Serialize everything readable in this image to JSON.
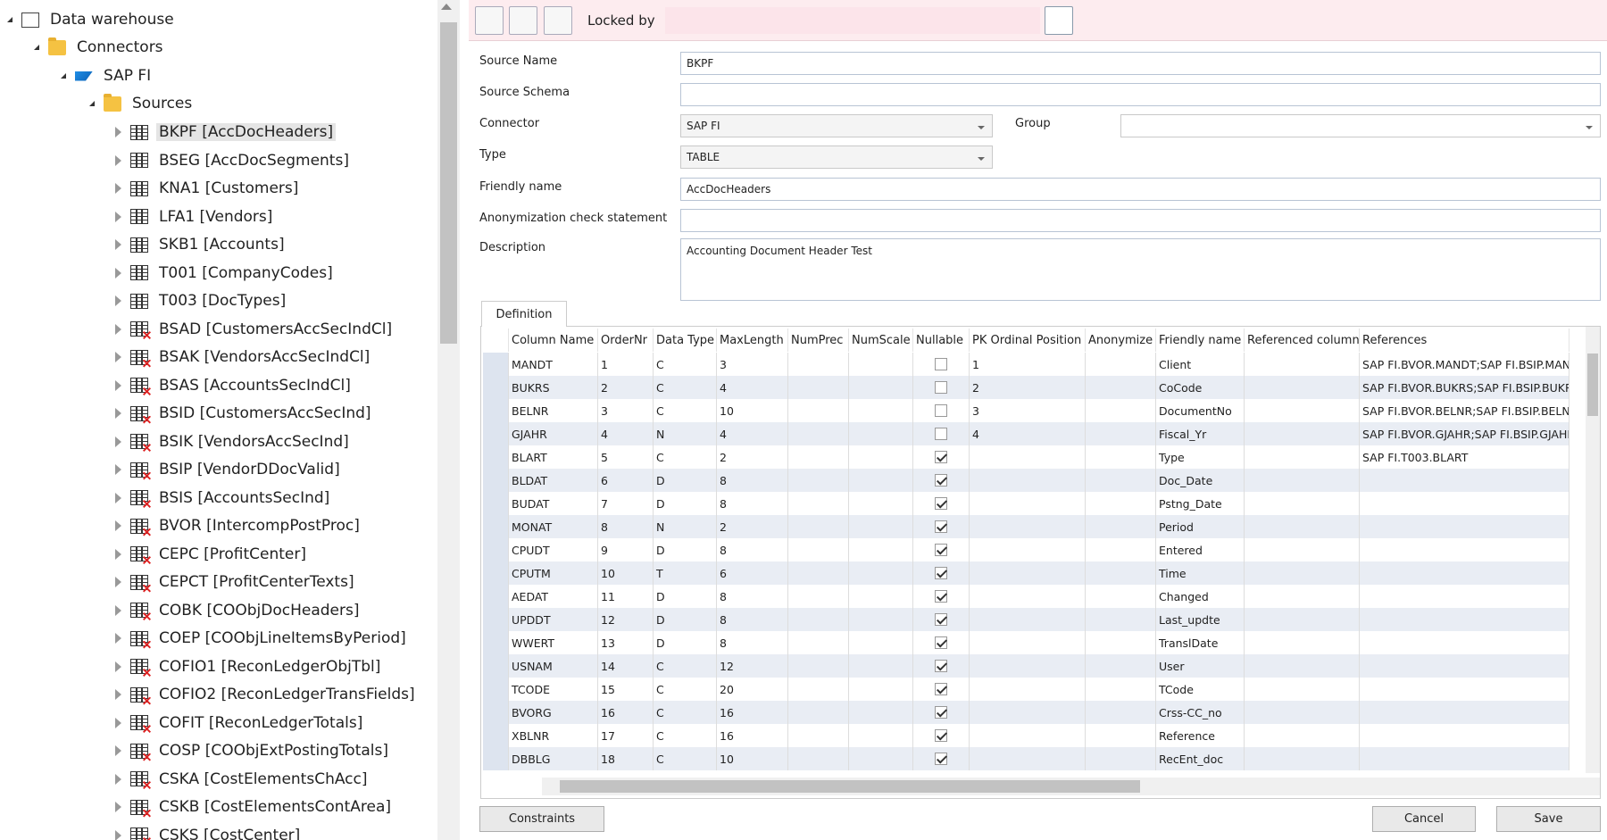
{
  "tree": {
    "root": "Data warehouse",
    "connectors": "Connectors",
    "connector": "SAP FI",
    "sources": "Sources",
    "items": [
      {
        "label": "BKPF [AccDocHeaders]",
        "kind": "table"
      },
      {
        "label": "BSEG [AccDocSegments]",
        "kind": "table"
      },
      {
        "label": "KNA1 [Customers]",
        "kind": "table"
      },
      {
        "label": "LFA1 [Vendors]",
        "kind": "table"
      },
      {
        "label": "SKB1 [Accounts]",
        "kind": "table"
      },
      {
        "label": "T001 [CompanyCodes]",
        "kind": "table"
      },
      {
        "label": "T003 [DocTypes]",
        "kind": "table"
      },
      {
        "label": "BSAD [CustomersAccSecIndCl]",
        "kind": "unloaded"
      },
      {
        "label": "BSAK [VendorsAccSecIndCl]",
        "kind": "unloaded"
      },
      {
        "label": "BSAS [AccountsSecIndCl]",
        "kind": "unloaded"
      },
      {
        "label": "BSID [CustomersAccSecInd]",
        "kind": "unloaded"
      },
      {
        "label": "BSIK [VendorsAccSecInd]",
        "kind": "unloaded"
      },
      {
        "label": "BSIP [VendorDDocValid]",
        "kind": "unloaded"
      },
      {
        "label": "BSIS [AccountsSecInd]",
        "kind": "unloaded"
      },
      {
        "label": "BVOR [IntercompPostProc]",
        "kind": "unloaded"
      },
      {
        "label": "CEPC [ProfitCenter]",
        "kind": "unloaded"
      },
      {
        "label": "CEPCT [ProfitCenterTexts]",
        "kind": "unloaded"
      },
      {
        "label": "COBK [COObjDocHeaders]",
        "kind": "unloaded"
      },
      {
        "label": "COEP [COObjLineItemsByPeriod]",
        "kind": "unloaded"
      },
      {
        "label": "COFIO1 [ReconLedgerObjTbl]",
        "kind": "unloaded"
      },
      {
        "label": "COFIO2 [ReconLedgerTransFields]",
        "kind": "unloaded"
      },
      {
        "label": "COFIT [ReconLedgerTotals]",
        "kind": "unloaded"
      },
      {
        "label": "COSP [COObjExtPostingTotals]",
        "kind": "unloaded"
      },
      {
        "label": "CSKA [CostElementsChAcc]",
        "kind": "unloaded"
      },
      {
        "label": "CSKB [CostElementsContArea]",
        "kind": "unloaded"
      },
      {
        "label": "CSKS [CostCenter]",
        "kind": "unloaded"
      }
    ]
  },
  "toolbar": {
    "locked_by": "Locked by"
  },
  "form": {
    "fields": [
      {
        "label": "Source Name",
        "value": "BKPF",
        "control": "text"
      },
      {
        "label": "Source Schema",
        "value": null,
        "control": "text"
      },
      {
        "label": "Connector",
        "value": "SAP FI",
        "control": "select"
      },
      {
        "label": "Type",
        "value": "TABLE",
        "control": "select"
      },
      {
        "label": "Friendly name",
        "value": "AccDocHeaders",
        "control": "text"
      },
      {
        "label": "Anonymization check statement",
        "value": null,
        "control": "text"
      },
      {
        "label": "Description",
        "value": "Accounting Document Header Test",
        "control": "textarea"
      }
    ],
    "group": {
      "label": "Group",
      "value": null
    }
  },
  "tab": "Definition",
  "table": {
    "columns": [
      "Column Name",
      "OrderNr",
      "Data Type",
      "MaxLength",
      "NumPrec",
      "NumScale",
      "Nullable",
      "PK Ordinal Position",
      "Anonymize",
      "Friendly name",
      "Referenced column",
      "References"
    ],
    "rows": [
      [
        "MANDT",
        1,
        "C",
        3,
        null,
        null,
        false,
        1,
        null,
        "Client",
        null,
        "SAP FI.BVOR.MANDT;SAP FI.BSIP.MAND"
      ],
      [
        "BUKRS",
        2,
        "C",
        4,
        null,
        null,
        false,
        2,
        null,
        "CoCode",
        null,
        "SAP FI.BVOR.BUKRS;SAP FI.BSIP.BUKRS;S"
      ],
      [
        "BELNR",
        3,
        "C",
        10,
        null,
        null,
        false,
        3,
        null,
        "DocumentNo",
        null,
        "SAP FI.BVOR.BELNR;SAP FI.BSIP.BELNR;S"
      ],
      [
        "GJAHR",
        4,
        "N",
        4,
        null,
        null,
        false,
        4,
        null,
        "Fiscal_Yr",
        null,
        "SAP FI.BVOR.GJAHR;SAP FI.BSIP.GJAHR;S"
      ],
      [
        "BLART",
        5,
        "C",
        2,
        null,
        null,
        true,
        null,
        null,
        "Type",
        null,
        "SAP FI.T003.BLART"
      ],
      [
        "BLDAT",
        6,
        "D",
        8,
        null,
        null,
        true,
        null,
        null,
        "Doc_Date",
        null,
        null
      ],
      [
        "BUDAT",
        7,
        "D",
        8,
        null,
        null,
        true,
        null,
        null,
        "Pstng_Date",
        null,
        null
      ],
      [
        "MONAT",
        8,
        "N",
        2,
        null,
        null,
        true,
        null,
        null,
        "Period",
        null,
        null
      ],
      [
        "CPUDT",
        9,
        "D",
        8,
        null,
        null,
        true,
        null,
        null,
        "Entered",
        null,
        null
      ],
      [
        "CPUTM",
        10,
        "T",
        6,
        null,
        null,
        true,
        null,
        null,
        "Time",
        null,
        null
      ],
      [
        "AEDAT",
        11,
        "D",
        8,
        null,
        null,
        true,
        null,
        null,
        "Changed",
        null,
        null
      ],
      [
        "UPDDT",
        12,
        "D",
        8,
        null,
        null,
        true,
        null,
        null,
        "Last_updte",
        null,
        null
      ],
      [
        "WWERT",
        13,
        "D",
        8,
        null,
        null,
        true,
        null,
        null,
        "TranslDate",
        null,
        null
      ],
      [
        "USNAM",
        14,
        "C",
        12,
        null,
        null,
        true,
        null,
        null,
        "User",
        null,
        null
      ],
      [
        "TCODE",
        15,
        "C",
        20,
        null,
        null,
        true,
        null,
        null,
        "TCode",
        null,
        null
      ],
      [
        "BVORG",
        16,
        "C",
        16,
        null,
        null,
        true,
        null,
        null,
        "Crss-CC_no",
        null,
        null
      ],
      [
        "XBLNR",
        17,
        "C",
        16,
        null,
        null,
        true,
        null,
        null,
        "Reference",
        null,
        null
      ],
      [
        "DBBLG",
        18,
        "C",
        10,
        null,
        null,
        true,
        null,
        null,
        "RecEnt_doc",
        null,
        null
      ]
    ]
  },
  "buttons": {
    "constraints": "Constraints",
    "cancel": "Cancel",
    "save": "Save"
  }
}
